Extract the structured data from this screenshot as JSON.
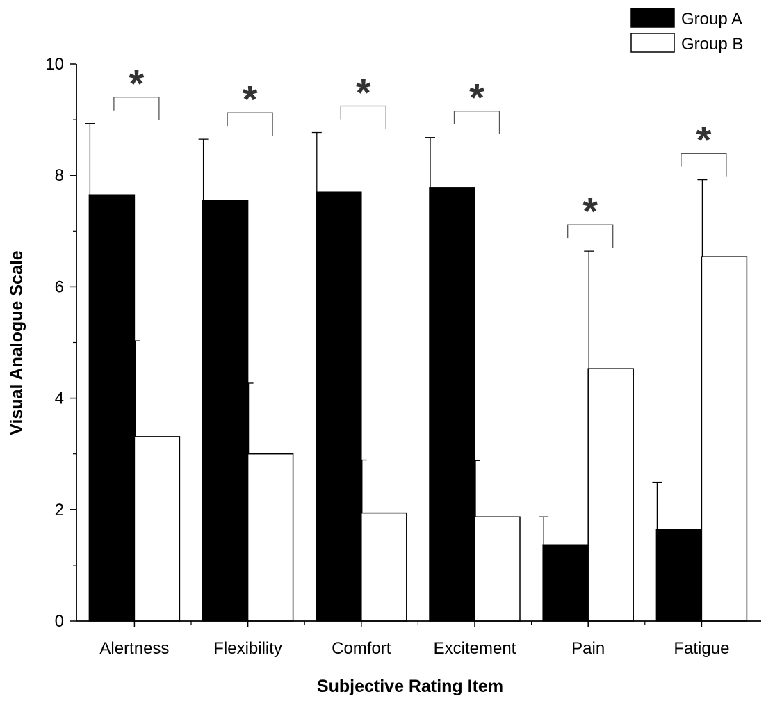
{
  "chart_data": {
    "type": "bar",
    "title": "",
    "xlabel": "Subjective Rating Item",
    "ylabel": "Visual Analogue Scale",
    "ylim": [
      0,
      10
    ],
    "yticks": [
      "0",
      "2",
      "4",
      "6",
      "8",
      "10"
    ],
    "categories": [
      "Alertness",
      "Flexibility",
      "Comfort",
      "Excitement",
      "Pain",
      "Fatigue"
    ],
    "series": [
      {
        "name": "Group A",
        "fill": "#000000",
        "values": [
          7.65,
          7.55,
          7.7,
          7.78,
          1.37,
          1.64
        ],
        "error": [
          1.28,
          1.1,
          1.07,
          0.9,
          0.5,
          0.85
        ]
      },
      {
        "name": "Group B",
        "fill": "#ffffff",
        "values": [
          3.31,
          3.0,
          1.94,
          1.87,
          4.53,
          6.54
        ],
        "error": [
          1.72,
          1.27,
          0.95,
          1.01,
          2.11,
          1.38
        ]
      }
    ],
    "significance": {
      "symbol": "*",
      "categories": [
        "Alertness",
        "Flexibility",
        "Comfort",
        "Excitement",
        "Pain",
        "Fatigue"
      ]
    },
    "legend": {
      "position": "top-right"
    },
    "grid": false
  }
}
